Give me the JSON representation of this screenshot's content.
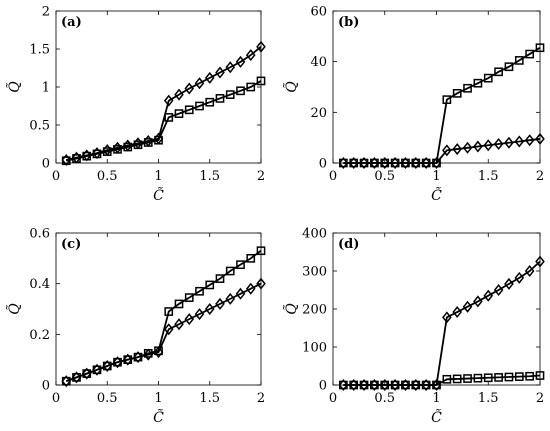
{
  "chart_data": [
    {
      "type": "line",
      "panel_label": "(a)",
      "xlabel": "C̃",
      "ylabel": "Q̃",
      "xlim": [
        0,
        2
      ],
      "ylim": [
        0,
        2
      ],
      "xticks": [
        "0",
        "0.5",
        "1",
        "1.5",
        "2"
      ],
      "yticks": [
        "0",
        "0.5",
        "1",
        "1.5",
        "2"
      ],
      "grid": false,
      "x": [
        0.1,
        0.2,
        0.3,
        0.4,
        0.5,
        0.6,
        0.7,
        0.8,
        0.9,
        1.0,
        1.1,
        1.2,
        1.3,
        1.4,
        1.5,
        1.6,
        1.7,
        1.8,
        1.9,
        2.0
      ],
      "series": [
        {
          "marker": "square",
          "values": [
            0.03,
            0.06,
            0.09,
            0.12,
            0.15,
            0.18,
            0.21,
            0.24,
            0.27,
            0.3,
            0.6,
            0.65,
            0.7,
            0.75,
            0.8,
            0.85,
            0.9,
            0.95,
            1.0,
            1.08
          ]
        },
        {
          "marker": "diamond",
          "values": [
            0.04,
            0.07,
            0.1,
            0.13,
            0.17,
            0.2,
            0.23,
            0.26,
            0.29,
            0.32,
            0.82,
            0.9,
            0.98,
            1.05,
            1.12,
            1.19,
            1.26,
            1.33,
            1.42,
            1.53
          ]
        }
      ]
    },
    {
      "type": "line",
      "panel_label": "(b)",
      "xlabel": "C̃",
      "ylabel": "Q̃",
      "xlim": [
        0,
        2
      ],
      "ylim": [
        0,
        60
      ],
      "xticks": [
        "0",
        "0.5",
        "1",
        "1.5",
        "2"
      ],
      "yticks": [
        "0",
        "20",
        "40",
        "60"
      ],
      "grid": false,
      "x": [
        0.1,
        0.2,
        0.3,
        0.4,
        0.5,
        0.6,
        0.7,
        0.8,
        0.9,
        1.0,
        1.1,
        1.2,
        1.3,
        1.4,
        1.5,
        1.6,
        1.7,
        1.8,
        1.9,
        2.0
      ],
      "series": [
        {
          "marker": "square",
          "values": [
            0,
            0,
            0,
            0,
            0,
            0,
            0,
            0,
            0,
            0,
            25,
            27.5,
            29.5,
            31.5,
            33.5,
            36,
            38,
            40.5,
            43,
            45.5
          ]
        },
        {
          "marker": "diamond",
          "values": [
            0,
            0,
            0,
            0,
            0,
            0,
            0,
            0,
            0,
            0,
            5,
            5.5,
            6,
            6.5,
            7,
            7.5,
            8,
            8.5,
            9,
            9.5
          ]
        }
      ]
    },
    {
      "type": "line",
      "panel_label": "(c)",
      "xlabel": "C̃",
      "ylabel": "Q̃",
      "xlim": [
        0,
        2
      ],
      "ylim": [
        0,
        0.6
      ],
      "xticks": [
        "0",
        "0.5",
        "1",
        "1.5",
        "2"
      ],
      "yticks": [
        "0",
        "0.2",
        "0.4",
        "0.6"
      ],
      "grid": false,
      "x": [
        0.1,
        0.2,
        0.3,
        0.4,
        0.5,
        0.6,
        0.7,
        0.8,
        0.9,
        1.0,
        1.1,
        1.2,
        1.3,
        1.4,
        1.5,
        1.6,
        1.7,
        1.8,
        1.9,
        2.0
      ],
      "series": [
        {
          "marker": "square",
          "values": [
            0.015,
            0.03,
            0.045,
            0.06,
            0.075,
            0.09,
            0.1,
            0.11,
            0.125,
            0.135,
            0.29,
            0.32,
            0.345,
            0.37,
            0.395,
            0.42,
            0.45,
            0.475,
            0.5,
            0.53
          ]
        },
        {
          "marker": "diamond",
          "values": [
            0.015,
            0.03,
            0.045,
            0.06,
            0.075,
            0.09,
            0.1,
            0.11,
            0.12,
            0.13,
            0.22,
            0.24,
            0.26,
            0.28,
            0.3,
            0.32,
            0.34,
            0.36,
            0.38,
            0.4
          ]
        }
      ]
    },
    {
      "type": "line",
      "panel_label": "(d)",
      "xlabel": "C̃",
      "ylabel": "Q̃",
      "xlim": [
        0,
        2
      ],
      "ylim": [
        0,
        400
      ],
      "xticks": [
        "0",
        "0.5",
        "1",
        "1.5",
        "2"
      ],
      "yticks": [
        "0",
        "100",
        "200",
        "300",
        "400"
      ],
      "grid": false,
      "x": [
        0.1,
        0.2,
        0.3,
        0.4,
        0.5,
        0.6,
        0.7,
        0.8,
        0.9,
        1.0,
        1.1,
        1.2,
        1.3,
        1.4,
        1.5,
        1.6,
        1.7,
        1.8,
        1.9,
        2.0
      ],
      "series": [
        {
          "marker": "square",
          "values": [
            0,
            0,
            0,
            0,
            0,
            0,
            0,
            0,
            0,
            0,
            15,
            16,
            17,
            18,
            19,
            20,
            21,
            22,
            23,
            25
          ]
        },
        {
          "marker": "diamond",
          "values": [
            0,
            0,
            0,
            0,
            0,
            0,
            0,
            0,
            0,
            0,
            178,
            192,
            206,
            220,
            235,
            250,
            266,
            282,
            300,
            325
          ]
        }
      ]
    }
  ]
}
